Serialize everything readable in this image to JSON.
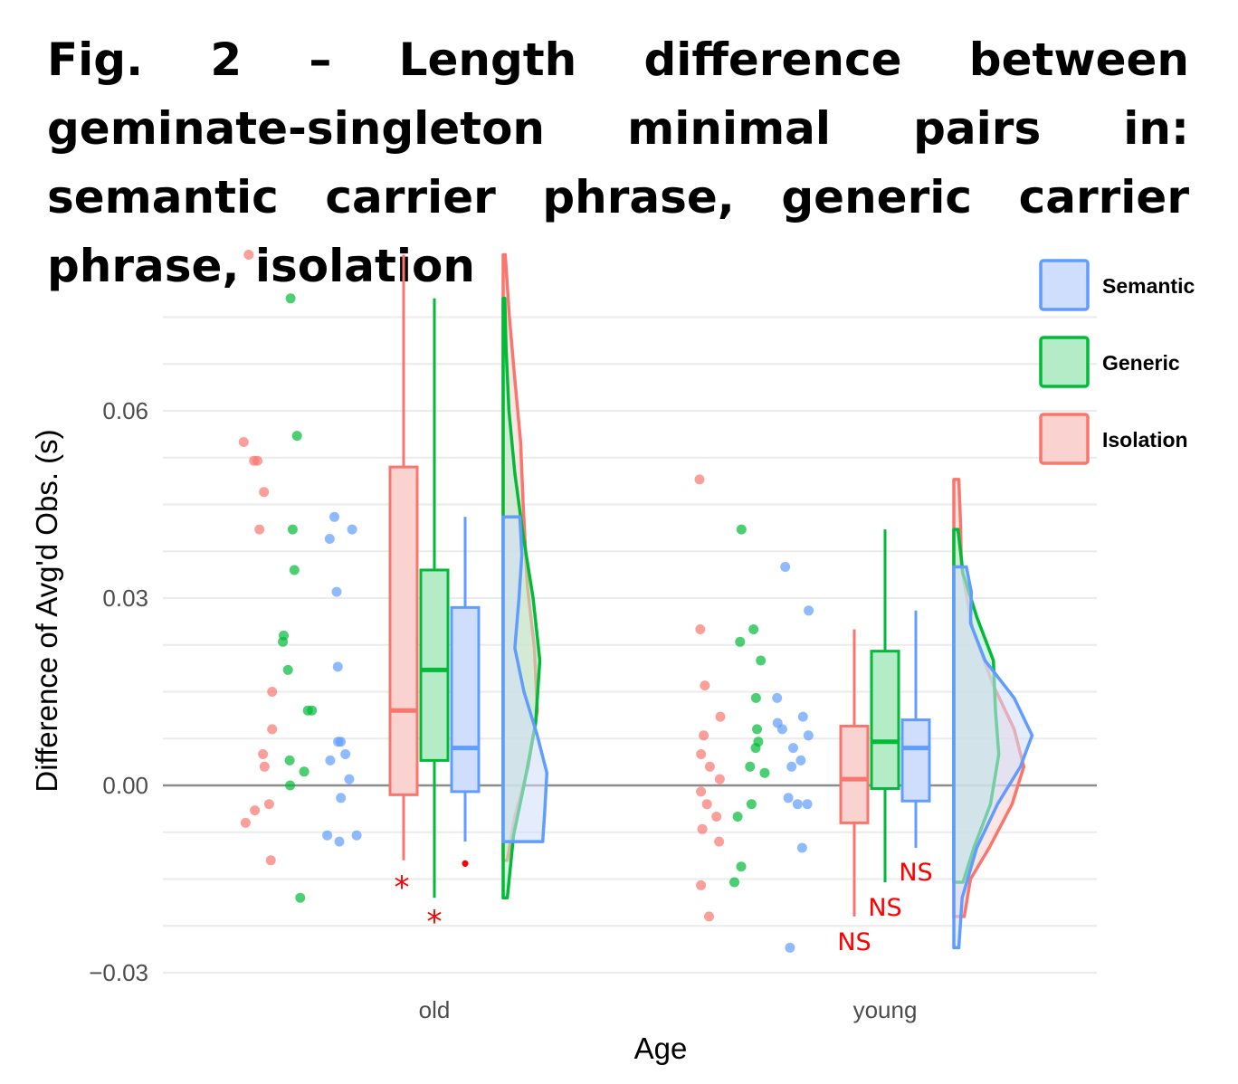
{
  "title": "Fig. 2 – Length difference between geminate-singleton minimal pairs in: semantic carrier phrase, generic carrier phrase, isolation",
  "chart_data": {
    "type": "raincloud",
    "xlabel": "Age",
    "ylabel": "Difference of Avg'd Obs. (s)",
    "ylim": [
      -0.03,
      0.09
    ],
    "yticks": [
      {
        "value": -0.03,
        "label": "−0.03"
      },
      {
        "value": 0.0,
        "label": "0.00"
      },
      {
        "value": 0.03,
        "label": "0.03"
      },
      {
        "value": 0.06,
        "label": "0.06"
      }
    ],
    "categories": [
      "old",
      "young"
    ],
    "grid": true,
    "reference_line": 0.0,
    "legend": {
      "placement": "right",
      "entries": [
        {
          "name": "Semantic",
          "fill": "#cfdefc",
          "stroke": "#619cff"
        },
        {
          "name": "Generic",
          "fill": "#b4ecc8",
          "stroke": "#00ba38"
        },
        {
          "name": "Isolation",
          "fill": "#fad2cf",
          "stroke": "#f8766d"
        }
      ]
    },
    "series": [
      {
        "name": "Isolation",
        "color": "#f8766d",
        "fill": "#fad2cf",
        "groups": [
          {
            "category": "old",
            "points": [
              0.085,
              0.055,
              0.052,
              0.052,
              0.047,
              0.041,
              0.015,
              0.009,
              0.005,
              0.003,
              -0.003,
              -0.004,
              -0.006,
              -0.012
            ],
            "box": {
              "min": -0.012,
              "q1": -0.0015,
              "median": 0.012,
              "q3": 0.051,
              "max": 0.085
            },
            "outliers": [],
            "density": [
              [
                -0.012,
                0.1
              ],
              [
                -0.005,
                0.28
              ],
              [
                0.003,
                0.6
              ],
              [
                0.012,
                0.82
              ],
              [
                0.022,
                0.75
              ],
              [
                0.032,
                0.58
              ],
              [
                0.045,
                0.48
              ],
              [
                0.055,
                0.42
              ],
              [
                0.065,
                0.28
              ],
              [
                0.075,
                0.15
              ],
              [
                0.085,
                0.05
              ]
            ]
          },
          {
            "category": "young",
            "points": [
              0.049,
              0.025,
              0.016,
              0.011,
              0.008,
              0.005,
              0.003,
              0.001,
              -0.001,
              -0.003,
              -0.005,
              -0.007,
              -0.009,
              -0.016,
              -0.021
            ],
            "box": {
              "min": -0.021,
              "q1": -0.006,
              "median": 0.001,
              "q3": 0.0095,
              "max": 0.025
            },
            "outliers": [],
            "density": [
              [
                -0.021,
                0.25
              ],
              [
                -0.015,
                0.4
              ],
              [
                -0.01,
                0.85
              ],
              [
                -0.003,
                1.4
              ],
              [
                0.003,
                1.68
              ],
              [
                0.009,
                1.45
              ],
              [
                0.016,
                0.95
              ],
              [
                0.025,
                0.45
              ],
              [
                0.035,
                0.18
              ],
              [
                0.042,
                0.16
              ],
              [
                0.049,
                0.12
              ]
            ]
          }
        ]
      },
      {
        "name": "Generic",
        "color": "#00ba38",
        "fill": "#b4ecc8",
        "groups": [
          {
            "category": "old",
            "points": [
              0.078,
              0.056,
              0.041,
              0.0345,
              0.024,
              0.023,
              0.0185,
              0.012,
              0.012,
              0.004,
              0.0022,
              0.0,
              -0.018
            ],
            "box": {
              "min": -0.018,
              "q1": 0.004,
              "median": 0.0185,
              "q3": 0.0345,
              "max": 0.078
            },
            "outliers": [],
            "density": [
              [
                -0.018,
                0.1
              ],
              [
                -0.008,
                0.25
              ],
              [
                0.0,
                0.5
              ],
              [
                0.01,
                0.78
              ],
              [
                0.02,
                0.88
              ],
              [
                0.03,
                0.72
              ],
              [
                0.04,
                0.48
              ],
              [
                0.05,
                0.28
              ],
              [
                0.06,
                0.14
              ],
              [
                0.07,
                0.07
              ],
              [
                0.078,
                0.04
              ]
            ]
          },
          {
            "category": "young",
            "points": [
              0.041,
              0.025,
              0.023,
              0.02,
              0.014,
              0.009,
              0.007,
              0.006,
              0.003,
              0.002,
              -0.003,
              -0.005,
              -0.013,
              -0.0155
            ],
            "box": {
              "min": -0.0155,
              "q1": -0.0005,
              "median": 0.007,
              "q3": 0.0215,
              "max": 0.041
            },
            "outliers": [],
            "density": [
              [
                -0.0155,
                0.22
              ],
              [
                -0.01,
                0.48
              ],
              [
                -0.003,
                0.88
              ],
              [
                0.005,
                1.08
              ],
              [
                0.012,
                1.0
              ],
              [
                0.02,
                0.95
              ],
              [
                0.027,
                0.55
              ],
              [
                0.034,
                0.22
              ],
              [
                0.041,
                0.1
              ]
            ]
          }
        ]
      },
      {
        "name": "Semantic",
        "color": "#619cff",
        "fill": "#cfdefc",
        "groups": [
          {
            "category": "old",
            "points": [
              0.043,
              0.041,
              0.0395,
              0.031,
              0.019,
              0.007,
              0.007,
              0.005,
              0.004,
              0.001,
              -0.002,
              -0.008,
              -0.008,
              -0.009
            ],
            "box": {
              "min": -0.009,
              "q1": -0.001,
              "median": 0.006,
              "q3": 0.0285,
              "max": 0.043
            },
            "outliers": [
              -0.0125
            ],
            "density": [
              [
                -0.009,
                0.95
              ],
              [
                -0.004,
                1.0
              ],
              [
                0.002,
                1.05
              ],
              [
                0.008,
                0.82
              ],
              [
                0.015,
                0.5
              ],
              [
                0.022,
                0.28
              ],
              [
                0.03,
                0.38
              ],
              [
                0.037,
                0.45
              ],
              [
                0.043,
                0.4
              ]
            ]
          },
          {
            "category": "young",
            "points": [
              0.035,
              0.028,
              0.014,
              0.011,
              0.01,
              0.009,
              0.008,
              0.006,
              0.004,
              0.003,
              -0.002,
              -0.003,
              -0.003,
              -0.01,
              -0.026
            ],
            "box": {
              "min": -0.01,
              "q1": -0.0025,
              "median": 0.006,
              "q3": 0.0105,
              "max": 0.028
            },
            "outliers": [],
            "density": [
              [
                -0.026,
                0.12
              ],
              [
                -0.018,
                0.2
              ],
              [
                -0.01,
                0.55
              ],
              [
                -0.003,
                1.05
              ],
              [
                0.003,
                1.6
              ],
              [
                0.008,
                1.88
              ],
              [
                0.014,
                1.45
              ],
              [
                0.02,
                0.75
              ],
              [
                0.026,
                0.4
              ],
              [
                0.031,
                0.42
              ],
              [
                0.035,
                0.3
              ]
            ]
          }
        ]
      }
    ],
    "annotations": [
      {
        "category": "old",
        "series": "Isolation",
        "text": "*"
      },
      {
        "category": "old",
        "series": "Generic",
        "text": "*"
      },
      {
        "category": "old",
        "series": "Semantic",
        "text": "."
      },
      {
        "category": "young",
        "series": "Isolation",
        "text": "NS"
      },
      {
        "category": "young",
        "series": "Generic",
        "text": "NS"
      },
      {
        "category": "young",
        "series": "Semantic",
        "text": "NS"
      }
    ]
  }
}
